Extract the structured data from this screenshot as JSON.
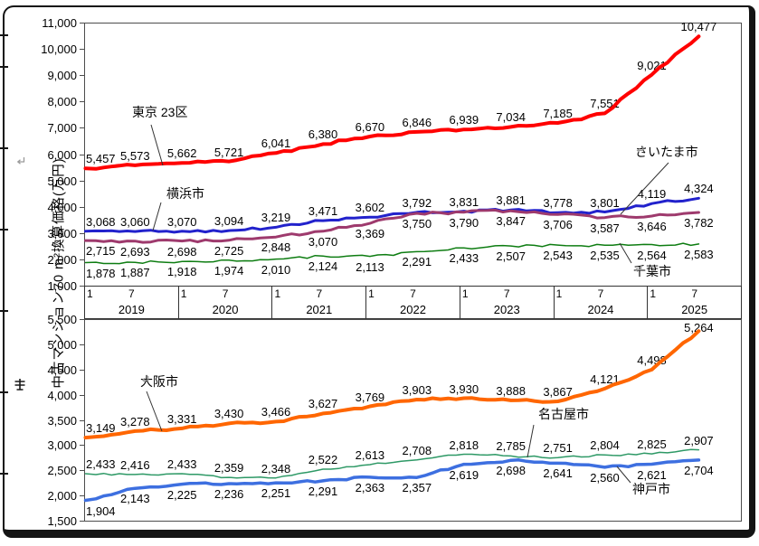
{
  "y_axis_title": "中古マンション70 m²換算価格(万円)",
  "x_axis": {
    "month_labels": [
      "1",
      "7"
    ],
    "years": [
      "2019",
      "2020",
      "2021",
      "2022",
      "2023",
      "2024",
      "2025"
    ]
  },
  "top_chart_yticks": [
    "11,000",
    "10,000",
    "9,000",
    "8,000",
    "7,000",
    "6,000",
    "5,000",
    "4,000",
    "3,000",
    "2,000",
    "1,000"
  ],
  "bottom_chart_yticks": [
    "5,500",
    "5,000",
    "4,500",
    "4,000",
    "3,500",
    "3,000",
    "2,500",
    "2,000",
    "1,500"
  ],
  "callout_labels": {
    "tokyo": "東京 23区",
    "yokohama": "横浜市",
    "saitama": "さいたま市",
    "chiba": "千葉市",
    "osaka": "大阪市",
    "nagoya": "名古屋市",
    "kobe": "神戸市"
  },
  "chart_data": [
    {
      "type": "line",
      "position": "top",
      "ylabel": "中古マンション70m²換算価格(万円)",
      "ylim": [
        1000,
        11000
      ],
      "ytick_step": 1000,
      "grid": false,
      "x": [
        "2019-01",
        "2019-07",
        "2020-01",
        "2020-07",
        "2021-01",
        "2021-07",
        "2022-01",
        "2022-07",
        "2023-01",
        "2023-07",
        "2024-01",
        "2024-07",
        "2025-01",
        "2025-07"
      ],
      "series": [
        {
          "name": "東京23区",
          "color": "#FF0000",
          "line_width": 4,
          "label_side": "above",
          "values": [
            5457,
            5573,
            5662,
            5721,
            6041,
            6380,
            6670,
            6846,
            6939,
            7034,
            7185,
            7551,
            9021,
            10477
          ]
        },
        {
          "name": "横浜市",
          "color": "#2222CC",
          "line_width": 3,
          "label_side": "above",
          "values": [
            3068,
            3060,
            3070,
            3094,
            3219,
            3471,
            3602,
            3792,
            3831,
            3881,
            3778,
            3801,
            4119,
            4324
          ]
        },
        {
          "name": "さいたま市",
          "color": "#9E3A6D",
          "line_width": 3,
          "label_side": "below",
          "values": [
            2715,
            2693,
            2698,
            2725,
            2848,
            3070,
            3369,
            3750,
            3790,
            3847,
            3706,
            3587,
            3646,
            3782
          ]
        },
        {
          "name": "千葉市",
          "color": "#0E7D12",
          "line_width": 1.5,
          "label_side": "below",
          "values": [
            1878,
            1887,
            1918,
            1974,
            2010,
            2124,
            2113,
            2291,
            2433,
            2507,
            2543,
            2535,
            2564,
            2583
          ]
        }
      ]
    },
    {
      "type": "line",
      "position": "bottom",
      "ylabel": "中古マンション70m²換算価格(万円)",
      "ylim": [
        1500,
        5500
      ],
      "ytick_step": 500,
      "grid": false,
      "x": [
        "2019-01",
        "2019-07",
        "2020-01",
        "2020-07",
        "2021-01",
        "2021-07",
        "2022-01",
        "2022-07",
        "2023-01",
        "2023-07",
        "2024-01",
        "2024-07",
        "2025-01",
        "2025-07"
      ],
      "series": [
        {
          "name": "大阪市",
          "color": "#FF6600",
          "line_width": 4,
          "label_side": "above",
          "values": [
            3149,
            3278,
            3331,
            3430,
            3466,
            3627,
            3769,
            3903,
            3930,
            3888,
            3867,
            4121,
            4498,
            5264
          ]
        },
        {
          "name": "名古屋市",
          "color": "#2E9966",
          "line_width": 1.5,
          "label_side": "above",
          "values": [
            2433,
            2416,
            2433,
            2359,
            2348,
            2522,
            2613,
            2708,
            2818,
            2785,
            2751,
            2804,
            2825,
            2907
          ]
        },
        {
          "name": "神戸市",
          "color": "#3D6FE0",
          "line_width": 3.5,
          "label_side": "below",
          "values": [
            1904,
            2143,
            2225,
            2236,
            2251,
            2291,
            2363,
            2357,
            2619,
            2698,
            2641,
            2560,
            2621,
            2704
          ]
        }
      ]
    }
  ]
}
